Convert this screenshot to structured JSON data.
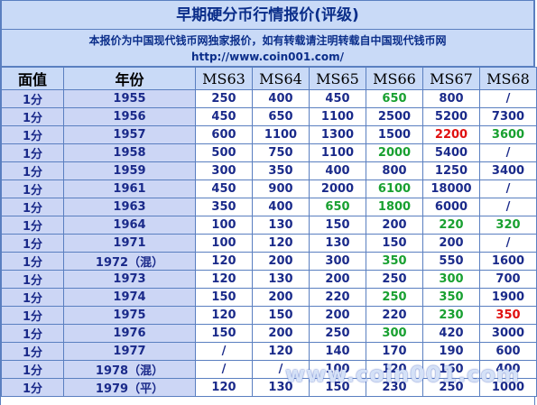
{
  "title": "早期硬分币行情报价(评级)",
  "notice": {
    "line1": "本报价为中国现代钱币网独家报价，如有转载请注明转载自中国现代钱币网",
    "line2": "http://www.coin001.com/"
  },
  "headers": [
    "面值",
    "年份",
    "MS63",
    "MS64",
    "MS65",
    "MS66",
    "MS67",
    "MS68"
  ],
  "colors": {
    "green": "#18a030",
    "red": "#e01010",
    "header_bg": "#c9daf7",
    "label_bg": "#ccd6f5",
    "text": "#1a2a8a"
  },
  "rows": [
    {
      "denom": "1分",
      "year": "1955",
      "prices": [
        "250",
        "400",
        "450",
        "650",
        "800",
        "/"
      ],
      "highlight": [
        "",
        "",
        "",
        "green",
        "",
        ""
      ]
    },
    {
      "denom": "1分",
      "year": "1956",
      "prices": [
        "450",
        "650",
        "1100",
        "2500",
        "5200",
        "7300"
      ],
      "highlight": [
        "",
        "",
        "",
        "",
        "",
        ""
      ]
    },
    {
      "denom": "1分",
      "year": "1957",
      "prices": [
        "600",
        "1100",
        "1300",
        "1500",
        "2200",
        "3600"
      ],
      "highlight": [
        "",
        "",
        "",
        "",
        "red",
        "green"
      ]
    },
    {
      "denom": "1分",
      "year": "1958",
      "prices": [
        "500",
        "750",
        "1100",
        "2000",
        "5400",
        "/"
      ],
      "highlight": [
        "",
        "",
        "",
        "green",
        "",
        ""
      ]
    },
    {
      "denom": "1分",
      "year": "1959",
      "prices": [
        "300",
        "350",
        "400",
        "800",
        "1250",
        "3400"
      ],
      "highlight": [
        "",
        "",
        "",
        "",
        "",
        ""
      ]
    },
    {
      "denom": "1分",
      "year": "1961",
      "prices": [
        "450",
        "900",
        "2000",
        "6100",
        "18000",
        "/"
      ],
      "highlight": [
        "",
        "",
        "",
        "green",
        "",
        ""
      ]
    },
    {
      "denom": "1分",
      "year": "1963",
      "prices": [
        "350",
        "400",
        "650",
        "1800",
        "6000",
        "/"
      ],
      "highlight": [
        "",
        "",
        "green",
        "green",
        "",
        ""
      ]
    },
    {
      "denom": "1分",
      "year": "1964",
      "prices": [
        "100",
        "130",
        "150",
        "200",
        "220",
        "320"
      ],
      "highlight": [
        "",
        "",
        "",
        "",
        "green",
        "green"
      ]
    },
    {
      "denom": "1分",
      "year": "1971",
      "prices": [
        "100",
        "120",
        "130",
        "150",
        "200",
        "/"
      ],
      "highlight": [
        "",
        "",
        "",
        "",
        "",
        ""
      ]
    },
    {
      "denom": "1分",
      "year": "1972（混）",
      "prices": [
        "120",
        "200",
        "300",
        "350",
        "550",
        "1600"
      ],
      "highlight": [
        "",
        "",
        "",
        "green",
        "",
        ""
      ]
    },
    {
      "denom": "1分",
      "year": "1973",
      "prices": [
        "120",
        "130",
        "200",
        "250",
        "300",
        "700"
      ],
      "highlight": [
        "",
        "",
        "",
        "",
        "green",
        ""
      ]
    },
    {
      "denom": "1分",
      "year": "1974",
      "prices": [
        "150",
        "200",
        "220",
        "250",
        "350",
        "1900"
      ],
      "highlight": [
        "",
        "",
        "",
        "green",
        "green",
        ""
      ]
    },
    {
      "denom": "1分",
      "year": "1975",
      "prices": [
        "120",
        "150",
        "200",
        "220",
        "230",
        "350"
      ],
      "highlight": [
        "",
        "",
        "",
        "",
        "green",
        "red"
      ]
    },
    {
      "denom": "1分",
      "year": "1976",
      "prices": [
        "150",
        "200",
        "250",
        "300",
        "420",
        "3000"
      ],
      "highlight": [
        "",
        "",
        "",
        "green",
        "",
        ""
      ]
    },
    {
      "denom": "1分",
      "year": "1977",
      "prices": [
        "/",
        "120",
        "140",
        "170",
        "190",
        "600"
      ],
      "highlight": [
        "",
        "",
        "",
        "",
        "",
        ""
      ]
    },
    {
      "denom": "1分",
      "year": "1978（混）",
      "prices": [
        "/",
        "/",
        "100",
        "120",
        "160",
        "400"
      ],
      "highlight": [
        "",
        "",
        "",
        "",
        "",
        ""
      ]
    },
    {
      "denom": "1分",
      "year": "1979（平）",
      "prices": [
        "120",
        "130",
        "150",
        "230",
        "250",
        "1000"
      ],
      "highlight": [
        "",
        "",
        "",
        "",
        "",
        ""
      ]
    }
  ],
  "watermark": "www.coin001.com"
}
